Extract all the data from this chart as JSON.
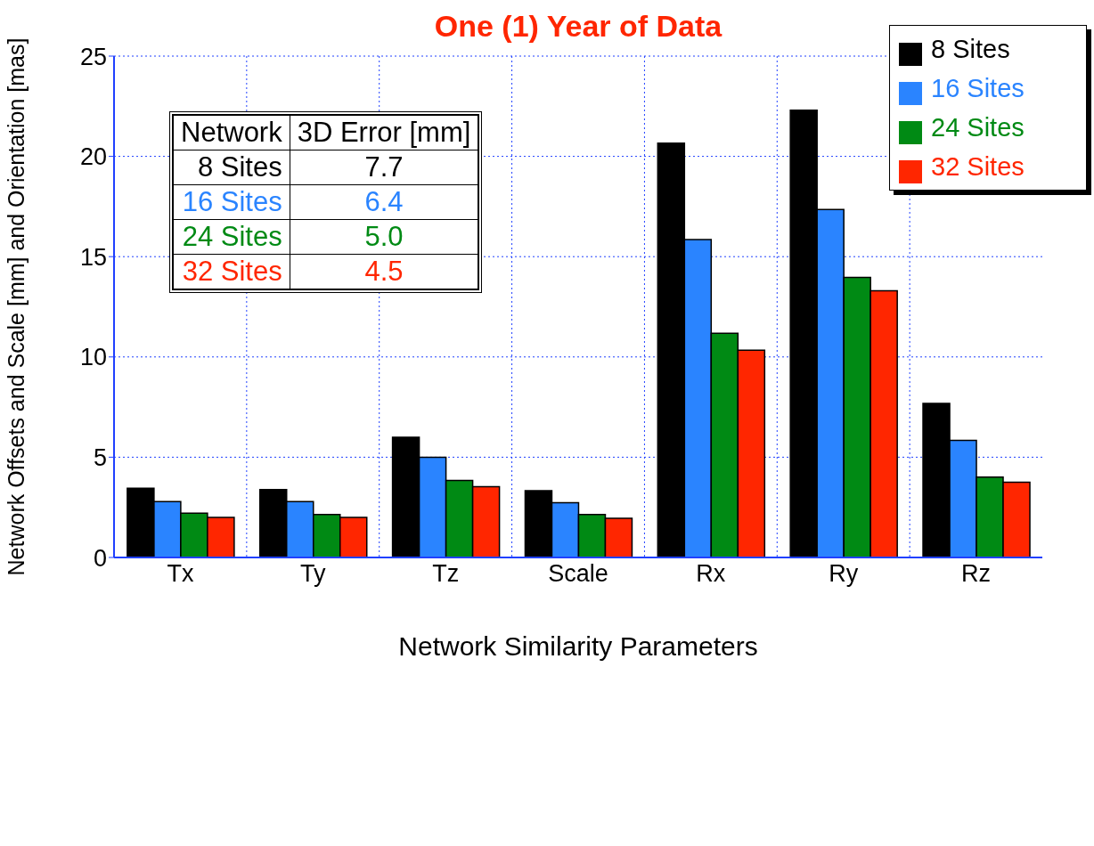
{
  "chart_data": {
    "type": "bar",
    "title": "One (1) Year of Data",
    "xlabel": "Network Similarity Parameters",
    "ylabel": "Network Offsets and Scale [mm] and Orientation [mas]",
    "categories": [
      "Tx",
      "Ty",
      "Tz",
      "Scale",
      "Rx",
      "Ry",
      "Rz"
    ],
    "series": [
      {
        "name": "8 Sites",
        "color": "#000000",
        "values": [
          3.45,
          3.39,
          6.0,
          3.33,
          20.66,
          22.3,
          7.68
        ]
      },
      {
        "name": "16 Sites",
        "color": "#2a84ff",
        "values": [
          2.79,
          2.79,
          5.0,
          2.73,
          15.85,
          17.35,
          5.84
        ]
      },
      {
        "name": "24 Sites",
        "color": "#008a14",
        "values": [
          2.21,
          2.14,
          3.84,
          2.14,
          11.18,
          13.96,
          4.01
        ]
      },
      {
        "name": "32 Sites",
        "color": "#ff2600",
        "values": [
          2.0,
          2.0,
          3.53,
          1.95,
          10.34,
          13.3,
          3.75
        ]
      }
    ],
    "ylim": [
      0,
      25
    ],
    "yticks": [
      0,
      5,
      10,
      15,
      20,
      25
    ],
    "grid": true,
    "legend": "top right",
    "annotations": [
      "Network",
      "3D Error [mm]",
      "8 Sites",
      "7.7",
      "16 Sites",
      "6.4",
      "24 Sites",
      "5.0",
      "32 Sites",
      "4.5"
    ]
  }
}
